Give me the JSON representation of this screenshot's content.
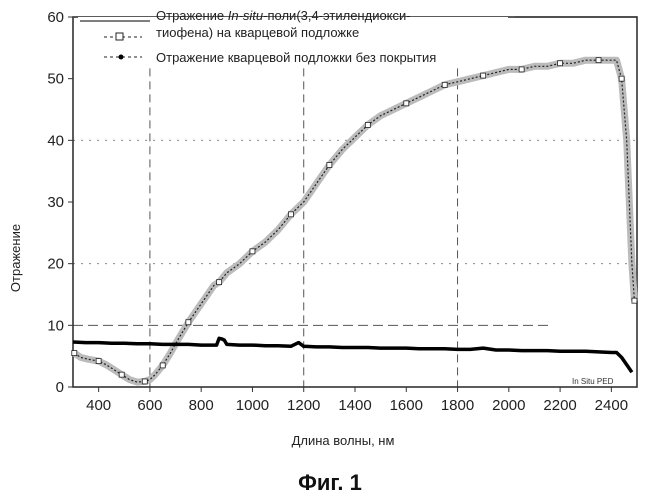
{
  "chart_data": {
    "type": "line",
    "title": "",
    "xlabel": "Длина волны, нм",
    "ylabel": "Отражение",
    "xlim": [
      300,
      2500
    ],
    "ylim": [
      0,
      60
    ],
    "xticks": [
      400,
      600,
      800,
      1000,
      1200,
      1400,
      1600,
      1800,
      2000,
      2200,
      2400
    ],
    "yticks": [
      0,
      10,
      20,
      30,
      40,
      50,
      60
    ],
    "legend_position": "top",
    "grid": "partial-dashed",
    "series": [
      {
        "name_parts": [
          "Отражение ",
          "In-situ",
          "-поли(3,4-этилендиокси-"
        ],
        "name_line2": "тиофена) на кварцевой подложке",
        "legend_marker": "-□-",
        "color": "#222222",
        "x": [
          305,
          330,
          360,
          400,
          430,
          460,
          490,
          520,
          550,
          580,
          600,
          620,
          650,
          680,
          700,
          750,
          800,
          850,
          870,
          900,
          950,
          1000,
          1050,
          1100,
          1150,
          1200,
          1250,
          1300,
          1350,
          1400,
          1450,
          1500,
          1550,
          1600,
          1650,
          1700,
          1750,
          1800,
          1850,
          1900,
          1950,
          2000,
          2050,
          2100,
          2150,
          2200,
          2250,
          2300,
          2350,
          2400,
          2420,
          2440,
          2460,
          2480,
          2490
        ],
        "y": [
          5.5,
          4.8,
          4.5,
          4.2,
          3.6,
          2.8,
          2.0,
          1.2,
          0.8,
          0.9,
          1.2,
          2.0,
          3.5,
          5.5,
          7.0,
          10.5,
          13.5,
          16.5,
          17.0,
          18.5,
          20.0,
          22.0,
          23.5,
          25.5,
          28.0,
          30.0,
          33.0,
          36.0,
          38.5,
          40.5,
          42.5,
          44.0,
          45.0,
          46.0,
          47.0,
          48.0,
          49.0,
          49.5,
          50.0,
          50.5,
          51.0,
          51.5,
          51.5,
          52.0,
          52.0,
          52.5,
          52.5,
          53.0,
          53.0,
          53.0,
          53.0,
          50.0,
          40.0,
          20.0,
          14.0
        ]
      },
      {
        "name": "Отражение кварцевой подложки без покрытия",
        "legend_marker": "-•-",
        "color": "#000000",
        "x": [
          300,
          350,
          400,
          450,
          500,
          550,
          600,
          650,
          700,
          750,
          800,
          850,
          860,
          870,
          880,
          890,
          900,
          950,
          1000,
          1050,
          1100,
          1150,
          1180,
          1200,
          1250,
          1300,
          1350,
          1400,
          1450,
          1500,
          1550,
          1600,
          1650,
          1700,
          1750,
          1800,
          1850,
          1900,
          1950,
          2000,
          2050,
          2100,
          2150,
          2200,
          2250,
          2300,
          2350,
          2400,
          2420,
          2440,
          2460,
          2480
        ],
        "y": [
          7.3,
          7.2,
          7.2,
          7.1,
          7.1,
          7.0,
          7.0,
          6.9,
          6.9,
          6.9,
          6.8,
          6.8,
          6.8,
          7.9,
          7.8,
          7.6,
          6.9,
          6.8,
          6.8,
          6.7,
          6.7,
          6.6,
          7.2,
          6.6,
          6.5,
          6.5,
          6.4,
          6.4,
          6.4,
          6.3,
          6.3,
          6.3,
          6.2,
          6.2,
          6.2,
          6.1,
          6.1,
          6.3,
          6.0,
          6.0,
          5.9,
          5.9,
          5.9,
          5.8,
          5.8,
          5.8,
          5.7,
          5.6,
          5.6,
          4.8,
          3.6,
          2.4
        ]
      }
    ],
    "annotation": "In Situ PED",
    "caption": "Фиг. 1"
  }
}
